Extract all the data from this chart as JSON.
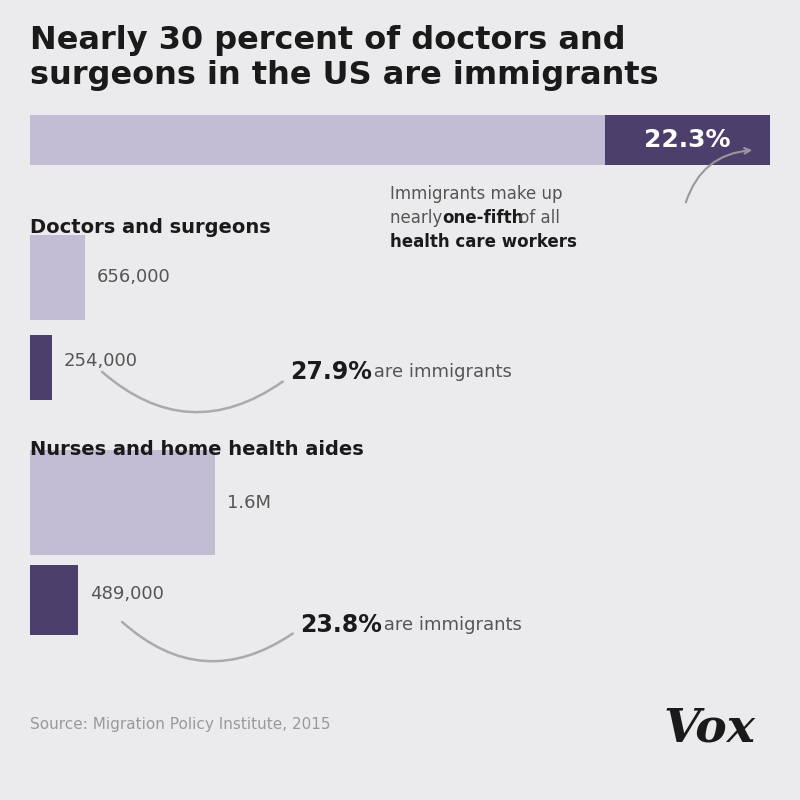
{
  "title_line1": "Nearly 30 percent of doctors and",
  "title_line2": "surgeons in the US are immigrants",
  "bg_color": "#ebebed",
  "light_bar_color": "#c2bcd4",
  "dark_bar_color": "#4d3f6b",
  "top_bar_percent": "22.3%",
  "section1_label": "Doctors and surgeons",
  "section1_total": "656,000",
  "section1_immigrant": "254,000",
  "section1_pct_bold": "27.9%",
  "section1_pct_text": " are immigrants",
  "section2_label": "Nurses and home health aides",
  "section2_total": "1.6M",
  "section2_immigrant": "489,000",
  "section2_pct_bold": "23.8%",
  "section2_pct_text": " are immigrants",
  "source_text": "Source: Migration Policy Institute, 2015",
  "vox_text": "Vox",
  "ann_line1": "Immigrants make up",
  "ann_line2a": "nearly ",
  "ann_line2b": "one-fifth",
  "ann_line2c": " of all",
  "ann_line3": "health care workers"
}
